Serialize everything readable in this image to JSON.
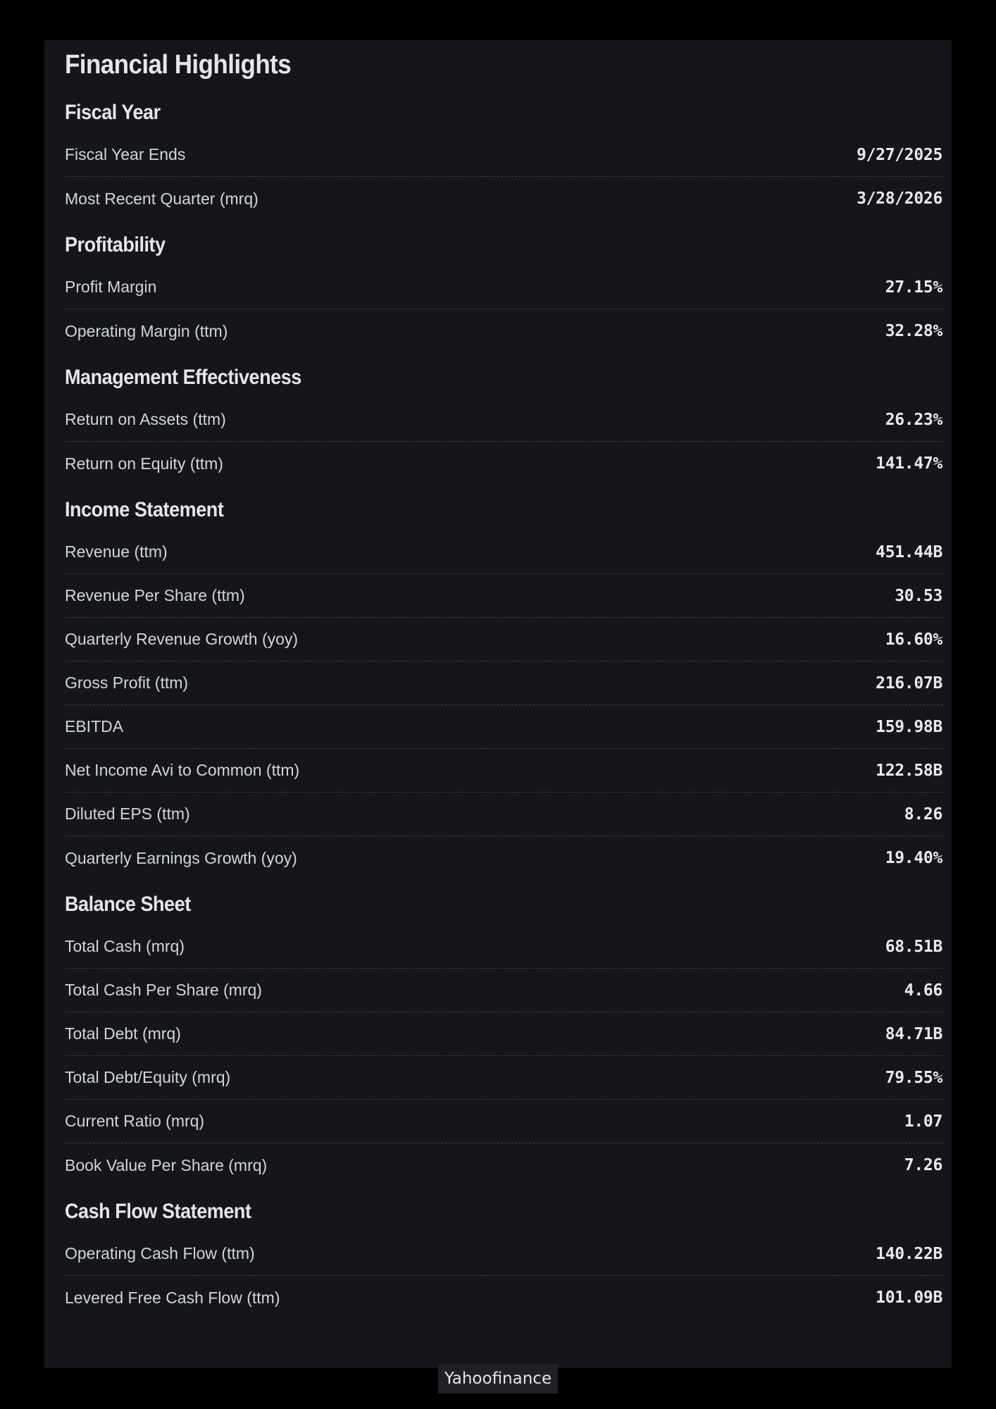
{
  "page": {
    "title": "Financial Highlights"
  },
  "sections": [
    {
      "title": "Fiscal Year",
      "rows": [
        {
          "label": "Fiscal Year Ends",
          "value": "9/27/2025"
        },
        {
          "label": "Most Recent Quarter (mrq)",
          "value": "3/28/2026"
        }
      ]
    },
    {
      "title": "Profitability",
      "rows": [
        {
          "label": "Profit Margin",
          "value": "27.15%"
        },
        {
          "label": "Operating Margin (ttm)",
          "value": "32.28%"
        }
      ]
    },
    {
      "title": "Management Effectiveness",
      "rows": [
        {
          "label": "Return on Assets (ttm)",
          "value": "26.23%"
        },
        {
          "label": "Return on Equity (ttm)",
          "value": "141.47%"
        }
      ]
    },
    {
      "title": "Income Statement",
      "rows": [
        {
          "label": "Revenue (ttm)",
          "value": "451.44B"
        },
        {
          "label": "Revenue Per Share (ttm)",
          "value": "30.53"
        },
        {
          "label": "Quarterly Revenue Growth (yoy)",
          "value": "16.60%"
        },
        {
          "label": "Gross Profit (ttm)",
          "value": "216.07B"
        },
        {
          "label": "EBITDA",
          "value": "159.98B"
        },
        {
          "label": "Net Income Avi to Common (ttm)",
          "value": "122.58B"
        },
        {
          "label": "Diluted EPS (ttm)",
          "value": "8.26"
        },
        {
          "label": "Quarterly Earnings Growth (yoy)",
          "value": "19.40%"
        }
      ]
    },
    {
      "title": "Balance Sheet",
      "rows": [
        {
          "label": "Total Cash (mrq)",
          "value": "68.51B"
        },
        {
          "label": "Total Cash Per Share (mrq)",
          "value": "4.66"
        },
        {
          "label": "Total Debt (mrq)",
          "value": "84.71B"
        },
        {
          "label": "Total Debt/Equity (mrq)",
          "value": "79.55%"
        },
        {
          "label": "Current Ratio (mrq)",
          "value": "1.07"
        },
        {
          "label": "Book Value Per Share (mrq)",
          "value": "7.26"
        }
      ]
    },
    {
      "title": "Cash Flow Statement",
      "rows": [
        {
          "label": "Operating Cash Flow (ttm)",
          "value": "140.22B"
        },
        {
          "label": "Levered Free Cash Flow (ttm)",
          "value": "101.09B"
        }
      ]
    }
  ],
  "source": {
    "label": "Yahoofinance"
  }
}
